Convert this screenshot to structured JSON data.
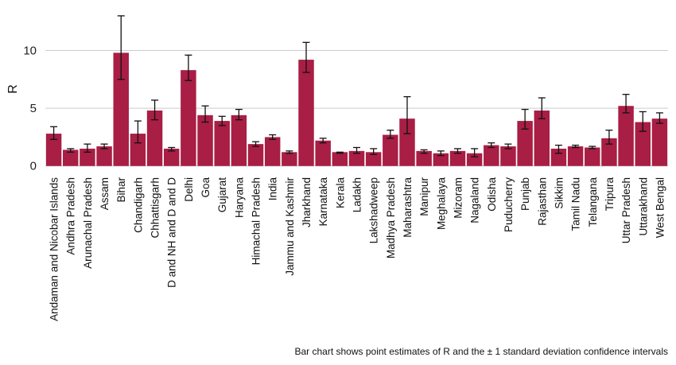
{
  "chart_data": {
    "type": "bar",
    "title": "",
    "xlabel": "",
    "ylabel": "R",
    "ylim": [
      -0.5,
      13.2
    ],
    "yticks": [
      0,
      5,
      10
    ],
    "grid": "horizontal",
    "legend": "none",
    "bar_color": "#a81e45",
    "error_bar_color": "#111111",
    "gridline_color": "#cccccc",
    "caption": "Bar chart shows point estimates of R and the ± 1 standard deviation confidence intervals",
    "categories": [
      "Andaman and Nicobar Islands",
      "Andhra Pradesh",
      "Arunachal Pradesh",
      "Assam",
      "Bihar",
      "Chandigarh",
      "Chhattisgarh",
      "D and NH and D and D",
      "Delhi",
      "Goa",
      "Gujarat",
      "Haryana",
      "Himachal Pradesh",
      "India",
      "Jammu and Kashmir",
      "Jharkhand",
      "Karnataka",
      "Kerala",
      "Ladakh",
      "Lakshadweep",
      "Madhya Pradesh",
      "Maharashtra",
      "Manipur",
      "Meghalaya",
      "Mizoram",
      "Nagaland",
      "Odisha",
      "Puducherry",
      "Punjab",
      "Rajasthan",
      "Sikkim",
      "Tamil Nadu",
      "Telangana",
      "Tripura",
      "Uttar Pradesh",
      "Uttarakhand",
      "West Bengal"
    ],
    "values": [
      2.8,
      1.4,
      1.5,
      1.7,
      9.8,
      2.8,
      4.8,
      1.5,
      8.3,
      4.4,
      3.9,
      4.4,
      1.9,
      2.5,
      1.2,
      9.2,
      2.2,
      1.2,
      1.3,
      1.2,
      2.7,
      4.1,
      1.3,
      1.1,
      1.3,
      1.1,
      1.8,
      1.7,
      3.9,
      4.8,
      1.5,
      1.7,
      1.6,
      2.4,
      5.2,
      3.8,
      4.1
    ],
    "error_low": [
      2.3,
      1.2,
      1.2,
      1.5,
      7.5,
      2.0,
      4.0,
      1.3,
      7.4,
      3.8,
      3.5,
      4.0,
      1.7,
      2.3,
      1.1,
      8.1,
      2.0,
      1.1,
      1.1,
      1.0,
      2.4,
      2.8,
      1.1,
      0.9,
      1.1,
      0.8,
      1.6,
      1.5,
      3.2,
      4.1,
      1.1,
      1.6,
      1.5,
      1.9,
      4.6,
      3.0,
      3.7
    ],
    "error_high": [
      3.4,
      1.5,
      1.9,
      1.9,
      13.0,
      3.9,
      5.7,
      1.6,
      9.6,
      5.2,
      4.3,
      4.9,
      2.1,
      2.7,
      1.3,
      10.7,
      2.4,
      1.2,
      1.6,
      1.5,
      3.1,
      6.0,
      1.4,
      1.3,
      1.5,
      1.5,
      2.0,
      1.9,
      4.9,
      5.9,
      1.8,
      1.8,
      1.7,
      3.1,
      6.2,
      4.7,
      4.6
    ]
  }
}
